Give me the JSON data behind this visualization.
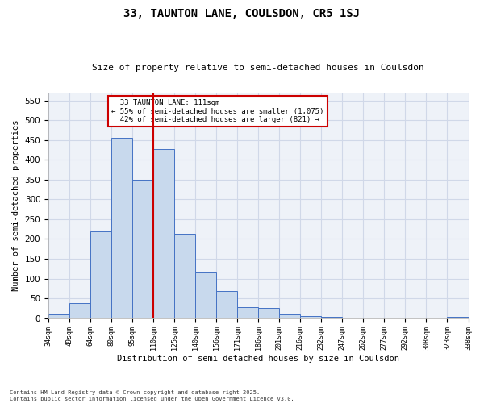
{
  "title1": "33, TAUNTON LANE, COULSDON, CR5 1SJ",
  "title2": "Size of property relative to semi-detached houses in Coulsdon",
  "xlabel": "Distribution of semi-detached houses by size in Coulsdon",
  "ylabel": "Number of semi-detached properties",
  "property_label": "33 TAUNTON LANE: 111sqm",
  "pct_smaller": 55,
  "n_smaller": 1075,
  "pct_larger": 42,
  "n_larger": 821,
  "footnote1": "Contains HM Land Registry data © Crown copyright and database right 2025.",
  "footnote2": "Contains public sector information licensed under the Open Government Licence v3.0.",
  "bin_edges": [
    34,
    49,
    64,
    80,
    95,
    110,
    125,
    140,
    156,
    171,
    186,
    201,
    216,
    232,
    247,
    262,
    277,
    292,
    308,
    323,
    338
  ],
  "bin_counts": [
    10,
    38,
    220,
    455,
    350,
    428,
    213,
    115,
    68,
    27,
    26,
    9,
    5,
    4,
    2,
    1,
    1,
    0,
    0,
    3
  ],
  "bar_color": "#c8d9ed",
  "bar_edge_color": "#4472c4",
  "vline_color": "#cc0000",
  "grid_color": "#d0d8e8",
  "bg_color": "#eef2f8",
  "ylim": [
    0,
    570
  ],
  "yticks": [
    0,
    50,
    100,
    150,
    200,
    250,
    300,
    350,
    400,
    450,
    500,
    550
  ],
  "annotation_box_color": "#cc0000",
  "title_fontsize": 10,
  "subtitle_fontsize": 8
}
